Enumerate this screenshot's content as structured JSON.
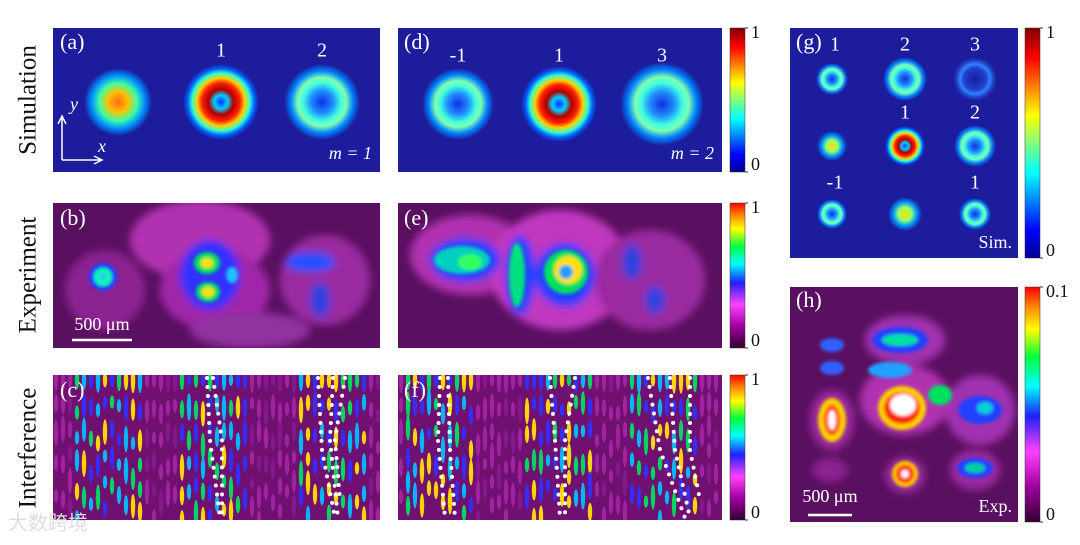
{
  "row_labels": [
    "Simulation",
    "Experiment",
    "Interference"
  ],
  "panels": [
    {
      "label": "(a)",
      "order_labels": [
        "1",
        "2"
      ],
      "note": "m = 1",
      "axes": [
        "y",
        "x"
      ]
    },
    {
      "label": "(b)",
      "scale_bar": "500 μm"
    },
    {
      "label": "(c)"
    },
    {
      "label": "(d)",
      "order_labels": [
        "-1",
        "1",
        "3"
      ],
      "note": "m = 2"
    },
    {
      "label": "(e)"
    },
    {
      "label": "(f)"
    },
    {
      "label": "(g)",
      "order_labels": [
        "1",
        "2",
        "3",
        "1",
        "2",
        "-1",
        "1"
      ],
      "note": "Sim."
    },
    {
      "label": "(h)",
      "scale_bar": "500 μm",
      "note": "Exp."
    }
  ],
  "colorbars": [
    {
      "ticks": [
        1,
        0
      ]
    },
    {
      "ticks": [
        1,
        0
      ]
    },
    {
      "ticks": [
        1,
        0
      ]
    },
    {
      "ticks": [
        1,
        0
      ]
    },
    {
      "ticks": [
        0.1,
        0
      ]
    }
  ],
  "watermark": "大数跨境"
}
